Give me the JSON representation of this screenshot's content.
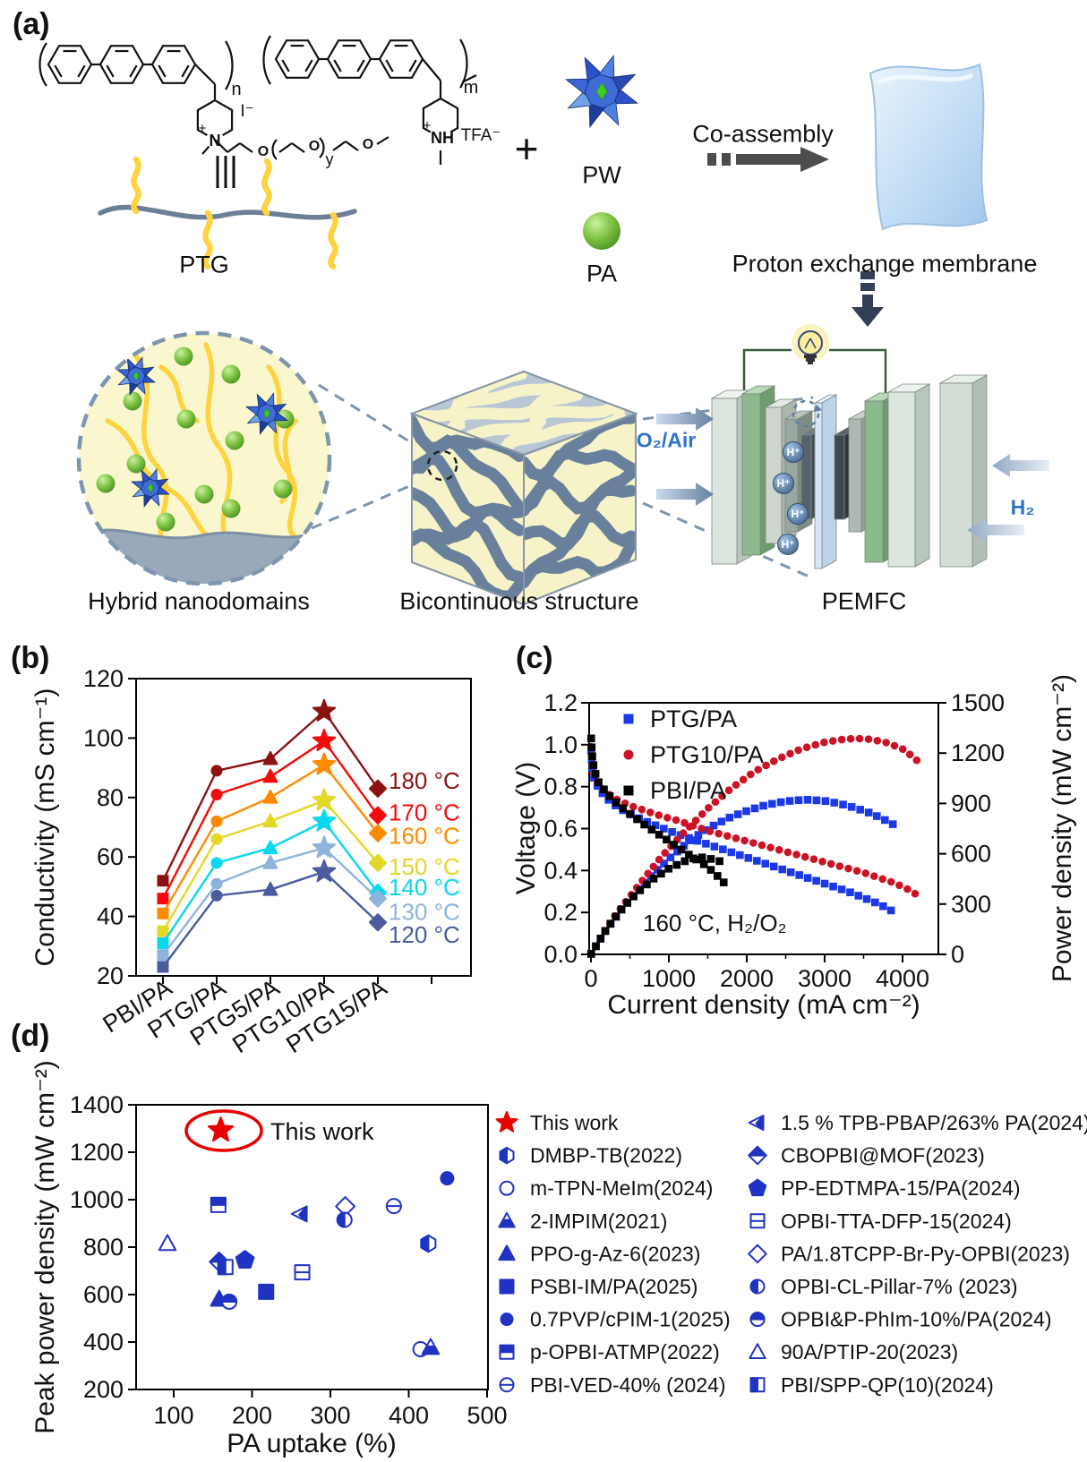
{
  "figure": {
    "panels": {
      "a": "(a)",
      "b": "(b)",
      "c": "(c)",
      "d": "(d)"
    }
  },
  "panel_a": {
    "polymer_name": "PTG",
    "plus_sign": "+",
    "pw_label": "PW",
    "pa_label": "PA",
    "coassembly_label": "Co-assembly",
    "membrane_label": "Proton exchange membrane",
    "hybrid_label": "Hybrid nanodomains",
    "bicontinuous_label": "Bicontinuous structure",
    "pemfc_label": "PEMFC",
    "o2_label": "O₂/Air",
    "h2_label": "H₂",
    "proton_label": "H⁺",
    "structure": {
      "nitrogen": "N",
      "plus": "+",
      "iodide": "I⁻",
      "sub_n": "n",
      "sub_m": "m",
      "sub_y": "y",
      "oxygen": "O",
      "nh": "NH",
      "tfa": "TFA⁻"
    }
  },
  "chart_data": [
    {
      "id": "b",
      "type": "line",
      "title": "",
      "xlabel": "",
      "ylabel": "Conductivity (mS cm⁻¹)",
      "categories": [
        "PBI/PA",
        "PTG/PA",
        "PTG5/PA",
        "PTG10/PA",
        "PTG15/PA"
      ],
      "category_markers": [
        "square",
        "circle",
        "triangle",
        "star",
        "diamond"
      ],
      "ylim": [
        20,
        120
      ],
      "yticks": [
        20,
        40,
        60,
        80,
        100,
        120
      ],
      "grid": false,
      "legend_position": "right-inside",
      "series": [
        {
          "name": "180 °C",
          "color": "#8C1212",
          "values": [
            52,
            89,
            93,
            109,
            83
          ]
        },
        {
          "name": "170 °C",
          "color": "#F40A0A",
          "values": [
            46,
            81,
            87,
            99,
            74
          ]
        },
        {
          "name": "160 °C",
          "color": "#FF8A00",
          "values": [
            41,
            72,
            80,
            91,
            68
          ]
        },
        {
          "name": "150 °C",
          "color": "#E3D727",
          "values": [
            35,
            66,
            72,
            79,
            58
          ]
        },
        {
          "name": "140 °C",
          "color": "#06D8F0",
          "values": [
            31,
            58,
            63,
            72,
            48
          ]
        },
        {
          "name": "130 °C",
          "color": "#8FB4DC",
          "values": [
            27,
            51,
            58,
            63,
            46
          ]
        },
        {
          "name": "120 °C",
          "color": "#4A5C9E",
          "values": [
            23,
            47,
            49,
            55,
            38
          ]
        }
      ]
    },
    {
      "id": "c",
      "type": "scatter",
      "xlabel": "Current density (mA cm⁻²)",
      "ylabel_left": "Voltage (V)",
      "ylabel_right": "Power density (mW cm⁻²)",
      "annotation": "160 °C, H₂/O₂",
      "xlim": [
        0,
        4450
      ],
      "xticks": [
        0,
        1000,
        2000,
        3000,
        4000
      ],
      "ylim_left": [
        0,
        1.2
      ],
      "yticks_left": [
        "0.0",
        "0.2",
        "0.4",
        "0.6",
        "0.8",
        "1.0",
        "1.2"
      ],
      "ylim_right": [
        0,
        1500
      ],
      "yticks_right": [
        0,
        300,
        600,
        900,
        1200,
        1500
      ],
      "grid": false,
      "legend_position": "top-left-inside",
      "series": [
        {
          "name": "PTG/PA",
          "color": "#1C39E8",
          "marker": "square",
          "polarization": [
            [
              3,
              0.97
            ],
            [
              15,
              0.9
            ],
            [
              40,
              0.84
            ],
            [
              100,
              0.79
            ],
            [
              200,
              0.745
            ],
            [
              350,
              0.7
            ],
            [
              500,
              0.67
            ],
            [
              700,
              0.635
            ],
            [
              900,
              0.605
            ],
            [
              1100,
              0.575
            ],
            [
              1300,
              0.55
            ],
            [
              1500,
              0.525
            ],
            [
              1700,
              0.5
            ],
            [
              1900,
              0.475
            ],
            [
              2100,
              0.45
            ],
            [
              2300,
              0.425
            ],
            [
              2500,
              0.4
            ],
            [
              2700,
              0.375
            ],
            [
              2900,
              0.35
            ],
            [
              3100,
              0.325
            ],
            [
              3300,
              0.3
            ],
            [
              3500,
              0.27
            ],
            [
              3700,
              0.24
            ],
            [
              3900,
              0.2
            ]
          ],
          "power": [
            [
              3,
              3
            ],
            [
              200,
              150
            ],
            [
              400,
              270
            ],
            [
              600,
              380
            ],
            [
              800,
              480
            ],
            [
              1000,
              570
            ],
            [
              1200,
              650
            ],
            [
              1400,
              720
            ],
            [
              1600,
              775
            ],
            [
              1800,
              820
            ],
            [
              2000,
              855
            ],
            [
              2200,
              885
            ],
            [
              2400,
              905
            ],
            [
              2600,
              918
            ],
            [
              2800,
              922
            ],
            [
              3000,
              915
            ],
            [
              3200,
              898
            ],
            [
              3400,
              872
            ],
            [
              3600,
              840
            ],
            [
              3800,
              795
            ],
            [
              3900,
              770
            ]
          ]
        },
        {
          "name": "PTG10/PA",
          "color": "#CC1326",
          "marker": "circle",
          "polarization": [
            [
              3,
              0.99
            ],
            [
              15,
              0.92
            ],
            [
              40,
              0.86
            ],
            [
              100,
              0.81
            ],
            [
              200,
              0.77
            ],
            [
              350,
              0.735
            ],
            [
              500,
              0.71
            ],
            [
              700,
              0.685
            ],
            [
              900,
              0.66
            ],
            [
              1100,
              0.64
            ],
            [
              1300,
              0.615
            ],
            [
              1500,
              0.59
            ],
            [
              1700,
              0.57
            ],
            [
              1900,
              0.55
            ],
            [
              2100,
              0.53
            ],
            [
              2300,
              0.51
            ],
            [
              2500,
              0.49
            ],
            [
              2700,
              0.47
            ],
            [
              2900,
              0.45
            ],
            [
              3100,
              0.43
            ],
            [
              3300,
              0.41
            ],
            [
              3500,
              0.39
            ],
            [
              3700,
              0.365
            ],
            [
              3900,
              0.34
            ],
            [
              4100,
              0.305
            ],
            [
              4200,
              0.28
            ]
          ],
          "power": [
            [
              3,
              3
            ],
            [
              300,
              225
            ],
            [
              600,
              405
            ],
            [
              900,
              580
            ],
            [
              1200,
              730
            ],
            [
              1500,
              870
            ],
            [
              1800,
              990
            ],
            [
              2100,
              1090
            ],
            [
              2400,
              1165
            ],
            [
              2700,
              1225
            ],
            [
              3000,
              1265
            ],
            [
              3200,
              1280
            ],
            [
              3400,
              1288
            ],
            [
              3600,
              1282
            ],
            [
              3800,
              1262
            ],
            [
              4000,
              1225
            ],
            [
              4100,
              1190
            ],
            [
              4200,
              1150
            ]
          ]
        },
        {
          "name": "PBI/PA",
          "color": "#000000",
          "marker": "square",
          "polarization": [
            [
              3,
              1.03
            ],
            [
              15,
              0.95
            ],
            [
              40,
              0.88
            ],
            [
              100,
              0.82
            ],
            [
              200,
              0.77
            ],
            [
              350,
              0.715
            ],
            [
              500,
              0.67
            ],
            [
              700,
              0.615
            ],
            [
              900,
              0.565
            ],
            [
              1100,
              0.515
            ],
            [
              1300,
              0.465
            ],
            [
              1450,
              0.43
            ],
            [
              1550,
              0.4
            ],
            [
              1650,
              0.365
            ],
            [
              1750,
              0.325
            ]
          ],
          "power": [
            [
              3,
              3
            ],
            [
              200,
              152
            ],
            [
              400,
              275
            ],
            [
              600,
              370
            ],
            [
              800,
              450
            ],
            [
              1000,
              512
            ],
            [
              1200,
              555
            ],
            [
              1350,
              578
            ],
            [
              1450,
              578
            ],
            [
              1550,
              568
            ],
            [
              1650,
              556
            ],
            [
              1750,
              545
            ]
          ]
        }
      ]
    },
    {
      "id": "d",
      "type": "scatter",
      "xlabel": "PA uptake (%)",
      "ylabel": "Peak power density (mW cm⁻²)",
      "xlim": [
        52,
        501
      ],
      "xticks": [
        100,
        200,
        300,
        400,
        500
      ],
      "ylim": [
        200,
        1400
      ],
      "yticks": [
        200,
        400,
        600,
        800,
        1000,
        1200,
        1400
      ],
      "grid": false,
      "accent_color": "#1F33C2",
      "highlight": {
        "name": "This work",
        "marker": "star",
        "color": "#E60000",
        "x": 160,
        "y": 1300
      },
      "points": [
        {
          "name": "DMBP-TB(2022)",
          "marker": "hex_half",
          "x": 425,
          "y": 815
        },
        {
          "name": "m-TPN-MeIm(2024)",
          "marker": "circle_open",
          "x": 415,
          "y": 370
        },
        {
          "name": "2-IMPIM(2021)",
          "marker": "tri_half",
          "x": 428,
          "y": 377
        },
        {
          "name": "PPO-g-Az-6(2023)",
          "marker": "tri_filled",
          "x": 158,
          "y": 580
        },
        {
          "name": "PSBI-IM/PA(2025)",
          "marker": "square_filled",
          "x": 218,
          "y": 612
        },
        {
          "name": "0.7PVP/cPIM-1(2025)",
          "marker": "circle_filled",
          "x": 449,
          "y": 1090
        },
        {
          "name": "p-OPBI-ATMP(2022)",
          "marker": "square_tophalf",
          "x": 157,
          "y": 978
        },
        {
          "name": "PBI-VED-40% (2024)",
          "marker": "circle_hline",
          "x": 381,
          "y": 973
        },
        {
          "name": "1.5 % TPB-PBAP/263% PA(2024)",
          "marker": "tri_left",
          "x": 262,
          "y": 940
        },
        {
          "name": "CBOPBI@MOF(2023)",
          "marker": "diamond_tophalf",
          "x": 158,
          "y": 738
        },
        {
          "name": "PP-EDTMPA-15/PA(2024)",
          "marker": "pentagon",
          "x": 191,
          "y": 745
        },
        {
          "name": "OPBI-TTA-DFP-15(2024)",
          "marker": "square_hline",
          "x": 264,
          "y": 694
        },
        {
          "name": "PA/1.8TCPP-Br-Py-OPBI(2023)",
          "marker": "diamond_open",
          "x": 319,
          "y": 972
        },
        {
          "name": "OPBI-CL-Pillar-7% (2023)",
          "marker": "circle_lefthalf",
          "x": 318,
          "y": 915
        },
        {
          "name": "OPBI&P-PhIm-10%/PA(2024)",
          "marker": "circle_tophalf",
          "x": 171,
          "y": 570
        },
        {
          "name": "90A/PTIP-20(2023)",
          "marker": "tri_open",
          "x": 92,
          "y": 815
        },
        {
          "name": "PBI/SPP-QP(10)(2024)",
          "marker": "square_lefthalf",
          "x": 166,
          "y": 716
        }
      ],
      "legend_col1": [
        "This work",
        "DMBP-TB(2022)",
        "m-TPN-MeIm(2024)",
        "2-IMPIM(2021)",
        "PPO-g-Az-6(2023)",
        "PSBI-IM/PA(2025)",
        "0.7PVP/cPIM-1(2025)",
        "p-OPBI-ATMP(2022)",
        "PBI-VED-40% (2024)"
      ],
      "legend_col2": [
        "1.5 % TPB-PBAP/263% PA(2024)",
        "CBOPBI@MOF(2023)",
        "PP-EDTMPA-15/PA(2024)",
        "OPBI-TTA-DFP-15(2024)",
        "PA/1.8TCPP-Br-Py-OPBI(2023)",
        "OPBI-CL-Pillar-7% (2023)",
        "OPBI&P-PhIm-10%/PA(2024)",
        "90A/PTIP-20(2023)",
        "PBI/SPP-QP(10)(2024)"
      ]
    }
  ]
}
